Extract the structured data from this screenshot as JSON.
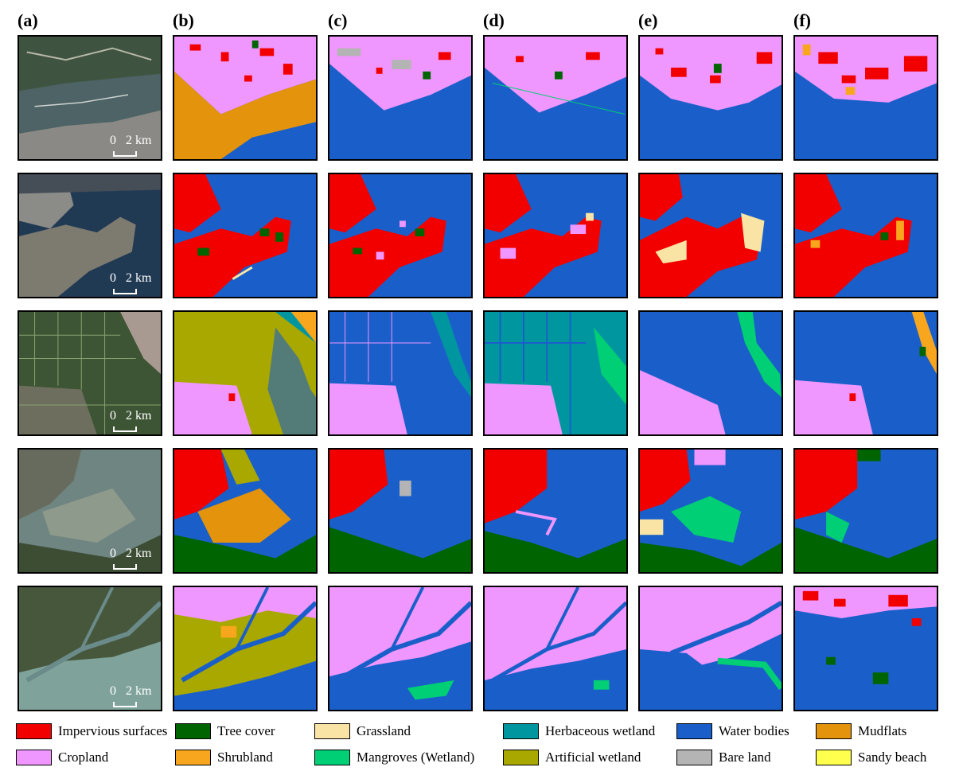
{
  "columns": [
    "(a)",
    "(b)",
    "(c)",
    "(d)",
    "(e)",
    "(f)"
  ],
  "scale_bar": {
    "zero": "0",
    "distance": "2 km"
  },
  "legend": [
    {
      "label": "Impervious surfaces",
      "color": "#f20000"
    },
    {
      "label": "Tree cover",
      "color": "#006400"
    },
    {
      "label": "Grassland",
      "color": "#f9e4a6"
    },
    {
      "label": "Herbaceous wetland",
      "color": "#0096a0"
    },
    {
      "label": "Water bodies",
      "color": "#1a5fc9"
    },
    {
      "label": "Mudflats",
      "color": "#e3930c"
    },
    {
      "label": "Cropland",
      "color": "#f096ff"
    },
    {
      "label": "Shrubland",
      "color": "#f7a61d"
    },
    {
      "label": "Mangroves (Wetland)",
      "color": "#00cf75"
    },
    {
      "label": "Artificial wetland",
      "color": "#a8a800"
    },
    {
      "label": "Bare land",
      "color": "#b4b4b4"
    },
    {
      "label": "Sandy beach",
      "color": "#ffff4d"
    }
  ]
}
